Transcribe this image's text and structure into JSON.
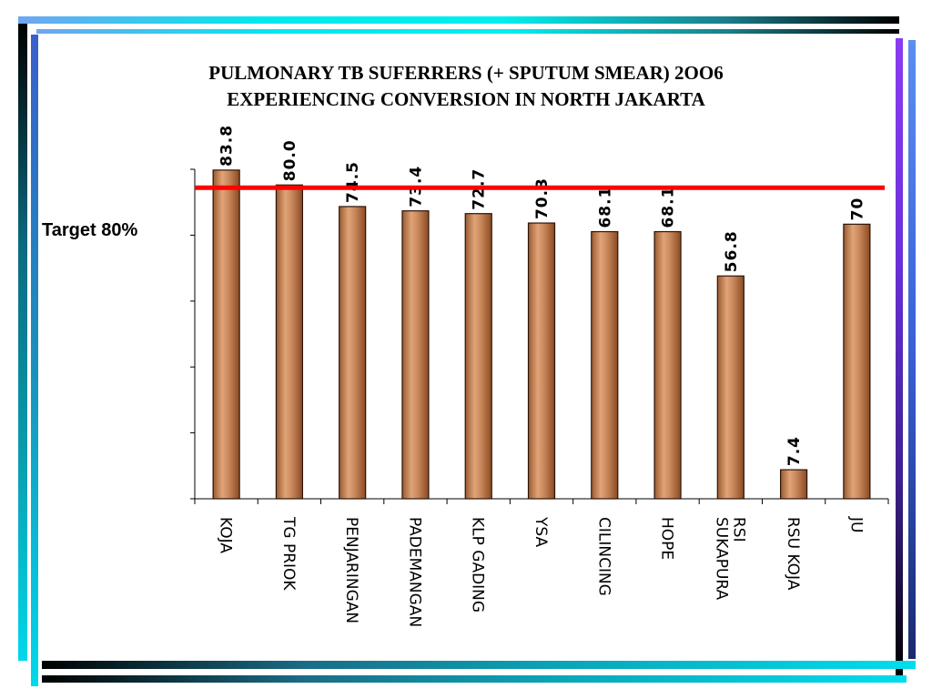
{
  "title_line1": "PULMONARY TB SUFERRERS (+ SPUTUM SMEAR) 2OO6",
  "title_line2": "EXPERIENCING CONVERSION IN NORTH  JAKARTA",
  "target_label": "Target 80%",
  "colors": {
    "bar_fill": "#c88a5a",
    "bar_edge": "#2a1408",
    "target_line": "#ff0000"
  },
  "chart_data": {
    "type": "bar",
    "title": "PULMONARY TB SUFERRERS (+ SPUTUM SMEAR) 2OO6 EXPERIENCING CONVERSION IN NORTH  JAKARTA",
    "categories": [
      [
        "KOJA"
      ],
      [
        "TG PRIOK"
      ],
      [
        "PENJARINGAN"
      ],
      [
        "PADEMANGAN"
      ],
      [
        "KLP GADING"
      ],
      [
        "YSA"
      ],
      [
        "CILINCING"
      ],
      [
        "HOPE"
      ],
      [
        "RSI",
        "SUKAPURA"
      ],
      [
        "RSU KOJA"
      ],
      [
        "JU"
      ]
    ],
    "values": [
      83.8,
      80.0,
      74.5,
      73.4,
      72.7,
      70.3,
      68.1,
      68.1,
      56.8,
      7.4,
      70
    ],
    "value_labels": [
      "83.8",
      "80.0",
      "74.5",
      "73.4",
      "72.7",
      "70.3",
      "68.1",
      "68.1",
      "56.8",
      "7.4",
      "70"
    ],
    "ylim": [
      0,
      84
    ],
    "target": 80,
    "xlabel": "",
    "ylabel": "",
    "grid": false,
    "legend": "none"
  }
}
